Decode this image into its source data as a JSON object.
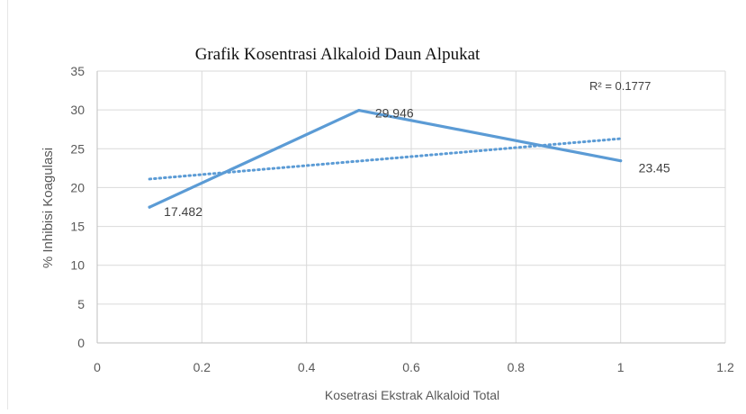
{
  "chart_data": {
    "type": "line",
    "title": "Grafik Kosentrasi Alkaloid Daun Alpukat",
    "xlabel": "Kosetrasi Ekstrak Alkaloid Total",
    "ylabel": "% Inhibisi Koagulasi",
    "xlim": [
      0,
      1.2
    ],
    "ylim": [
      0,
      35
    ],
    "x_ticks": [
      0,
      0.2,
      0.4,
      0.6,
      0.8,
      1,
      1.2
    ],
    "x_tick_labels": [
      "0",
      "0.2",
      "0.4",
      "0.6",
      "0.8",
      "1",
      "1.2"
    ],
    "y_ticks": [
      0,
      5,
      10,
      15,
      20,
      25,
      30,
      35
    ],
    "y_tick_labels": [
      "0",
      "5",
      "10",
      "15",
      "20",
      "25",
      "30",
      "35"
    ],
    "grid": true,
    "series": [
      {
        "x": [
          0.1,
          0.5,
          1.0
        ],
        "y": [
          17.482,
          29.946,
          23.45
        ],
        "data_labels": [
          "17.482",
          "29.946",
          "23.45"
        ],
        "color": "#5b9bd5"
      }
    ],
    "trendline": {
      "type": "linear",
      "x": [
        0.1,
        1.0
      ],
      "y": [
        21.1,
        26.3
      ],
      "color": "#5b9bd5",
      "style": "dotted",
      "r_squared_label": "R² = 0.1777"
    }
  }
}
